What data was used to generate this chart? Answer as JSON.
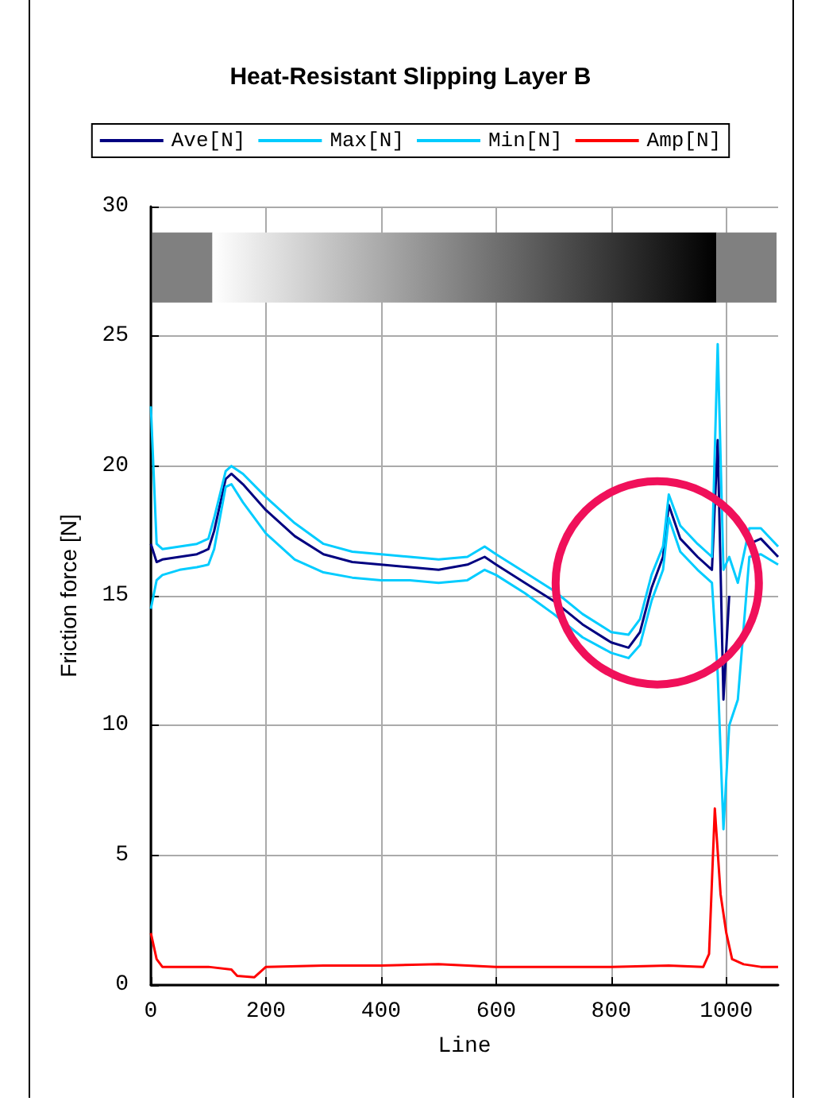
{
  "chart_data": {
    "type": "line",
    "title": "Heat-Resistant Slipping Layer B",
    "xlabel": "Line",
    "ylabel": "Friction force [N]",
    "xlim": [
      0,
      1090
    ],
    "xticks": [
      0,
      200,
      400,
      600,
      800,
      1000
    ],
    "ylim": [
      0,
      30
    ],
    "yticks": [
      0,
      5,
      10,
      15,
      20,
      25,
      30
    ],
    "grid": true,
    "legend": "top",
    "marker": "none",
    "line_style": "solid",
    "series": [
      {
        "name": "Ave[N]",
        "color": "#000080",
        "x": [
          0,
          10,
          20,
          50,
          80,
          100,
          110,
          130,
          140,
          160,
          200,
          250,
          300,
          350,
          400,
          450,
          500,
          550,
          580,
          600,
          650,
          700,
          750,
          800,
          830,
          850,
          870,
          890,
          900,
          920,
          950,
          975,
          985,
          995,
          1005,
          1020,
          1040,
          1060,
          1090
        ],
        "values": [
          17,
          16.3,
          16.4,
          16.5,
          16.6,
          16.8,
          17.5,
          19.5,
          19.7,
          19.3,
          18.3,
          17.3,
          16.6,
          16.3,
          16.2,
          16.1,
          16.0,
          16.2,
          16.5,
          16.2,
          15.5,
          14.8,
          13.9,
          13.2,
          13.0,
          13.6,
          15.3,
          16.5,
          18.5,
          17.2,
          16.5,
          16.0,
          21,
          11,
          15,
          null,
          17,
          17.2,
          16.5
        ]
      },
      {
        "name": "Max[N]",
        "color": "#00ccff",
        "x": [
          0,
          10,
          20,
          50,
          80,
          100,
          110,
          130,
          140,
          160,
          200,
          250,
          300,
          350,
          400,
          450,
          500,
          550,
          580,
          600,
          650,
          700,
          750,
          800,
          830,
          850,
          870,
          890,
          900,
          920,
          950,
          975,
          985,
          995,
          1005,
          1020,
          1040,
          1060,
          1090
        ],
        "values": [
          22.3,
          17,
          16.8,
          16.9,
          17.0,
          17.2,
          18,
          19.8,
          20,
          19.7,
          18.8,
          17.8,
          17.0,
          16.7,
          16.6,
          16.5,
          16.4,
          16.5,
          16.9,
          16.6,
          15.9,
          15.2,
          14.3,
          13.6,
          13.5,
          14.1,
          15.8,
          16.9,
          18.9,
          17.7,
          17.0,
          16.5,
          24.7,
          16,
          16.5,
          15.5,
          17.6,
          17.6,
          16.9
        ]
      },
      {
        "name": "Min[N]",
        "color": "#00ccff",
        "x": [
          0,
          10,
          20,
          50,
          80,
          100,
          110,
          130,
          140,
          160,
          200,
          250,
          300,
          350,
          400,
          450,
          500,
          550,
          580,
          600,
          650,
          700,
          750,
          800,
          830,
          850,
          870,
          890,
          900,
          920,
          950,
          975,
          985,
          995,
          1005,
          1020,
          1040,
          1060,
          1090
        ],
        "values": [
          14.5,
          15.6,
          15.8,
          16.0,
          16.1,
          16.2,
          16.8,
          19.2,
          19.3,
          18.6,
          17.4,
          16.4,
          15.9,
          15.7,
          15.6,
          15.6,
          15.5,
          15.6,
          16.0,
          15.8,
          15.1,
          14.3,
          13.4,
          12.8,
          12.6,
          13.1,
          14.8,
          16.0,
          18.0,
          16.7,
          16.0,
          15.5,
          12,
          6,
          10,
          11,
          16.5,
          16.6,
          16.2
        ]
      },
      {
        "name": "Amp[N]",
        "color": "#ff0000",
        "x": [
          0,
          10,
          20,
          50,
          100,
          140,
          150,
          180,
          200,
          300,
          400,
          500,
          600,
          700,
          800,
          900,
          960,
          970,
          980,
          990,
          1000,
          1010,
          1030,
          1060,
          1090
        ],
        "values": [
          2.0,
          1.0,
          0.7,
          0.7,
          0.7,
          0.6,
          0.35,
          0.3,
          0.7,
          0.75,
          0.75,
          0.8,
          0.7,
          0.7,
          0.7,
          0.75,
          0.7,
          1.2,
          6.8,
          3.5,
          2.0,
          1.0,
          0.8,
          0.7,
          0.7
        ]
      }
    ]
  }
}
